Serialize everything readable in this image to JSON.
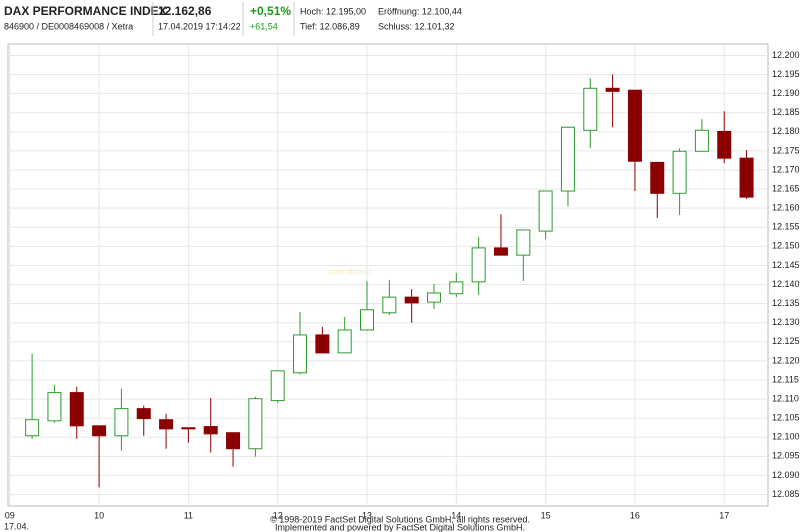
{
  "header": {
    "title": "DAX PERFORMANCE INDEX",
    "ids": "846900 / DE0008469008 / Xetra",
    "price": "12.162,86",
    "timestamp": "17.04.2019 17:14:22",
    "change_pct": "+0,51%",
    "change_abs": "+61,54",
    "high": "Hoch: 12.195,00",
    "open": "Eröffnung: 12.100,44",
    "low": "Tief: 12.086,89",
    "prev_close": "Schluss: 12.101,32"
  },
  "chart_data": {
    "type": "candlestick",
    "watermark": "comdirect",
    "date_label": "17.04.",
    "x": [
      9.25,
      9.5,
      9.75,
      10,
      10.25,
      10.5,
      10.75,
      11,
      11.25,
      11.5,
      11.75,
      12,
      12.25,
      12.5,
      12.75,
      13,
      13.25,
      13.5,
      13.75,
      14,
      14.25,
      14.5,
      14.75,
      15,
      15.25,
      15.5,
      15.75,
      16,
      16.25,
      16.5,
      16.75,
      17,
      17.25
    ],
    "open": [
      12100.4,
      12104.3,
      12111.7,
      12103.0,
      12100.4,
      12107.5,
      12104.6,
      12102.5,
      12102.8,
      12101.2,
      12097.0,
      12109.6,
      12116.9,
      12126.8,
      12122.1,
      12128.1,
      12132.6,
      12136.7,
      12135.4,
      12137.6,
      12140.7,
      12149.6,
      12147.7,
      12154.0,
      12164.5,
      12180.4,
      12191.4,
      12190.9,
      12172.0,
      12163.9,
      12174.9,
      12180.1,
      12173.1
    ],
    "high": [
      12121.9,
      12113.7,
      12113.2,
      12103.0,
      12112.7,
      12108.3,
      12106.2,
      12102.5,
      12110.3,
      12101.2,
      12110.6,
      12117.4,
      12132.8,
      12128.9,
      12131.5,
      12140.9,
      12141.2,
      12138.8,
      12140.1,
      12143.0,
      12152.4,
      12158.4,
      12154.3,
      12164.5,
      12181.4,
      12194.0,
      12195.0,
      12190.9,
      12172.0,
      12175.7,
      12183.3,
      12185.4,
      12175.2
    ],
    "low": [
      12099.6,
      12103.8,
      12099.6,
      12086.9,
      12096.5,
      12100.4,
      12097.0,
      12098.6,
      12096.0,
      12092.3,
      12094.9,
      12109.0,
      12116.4,
      12122.1,
      12122.1,
      12127.9,
      12132.0,
      12130.0,
      12133.6,
      12136.7,
      12137.3,
      12147.7,
      12140.9,
      12151.9,
      12160.5,
      12175.7,
      12181.2,
      12164.5,
      12157.4,
      12158.2,
      12174.9,
      12171.8,
      12162.4
    ],
    "close": [
      12104.6,
      12111.7,
      12103.0,
      12100.4,
      12107.5,
      12104.9,
      12102.2,
      12102.2,
      12100.9,
      12097.0,
      12110.1,
      12117.4,
      12126.8,
      12122.1,
      12128.1,
      12133.4,
      12136.7,
      12135.2,
      12137.8,
      12140.7,
      12149.6,
      12147.7,
      12154.3,
      12164.5,
      12181.2,
      12191.4,
      12190.6,
      12172.3,
      12163.9,
      12174.9,
      12180.4,
      12173.1,
      12162.9
    ],
    "up_color": "#2e9b2e",
    "down_color": "#8b0000",
    "xlim": [
      8.98,
      17.49
    ],
    "xticks": [
      {
        "value": 9,
        "label": "09"
      },
      10,
      11,
      12,
      13,
      14,
      15,
      16,
      17
    ],
    "ylim": [
      12082,
      12203
    ],
    "yticks": [
      {
        "value": 12085,
        "label": "12.085"
      },
      {
        "value": 12090,
        "label": "12.090"
      },
      {
        "value": 12095,
        "label": "12.095"
      },
      {
        "value": 12100,
        "label": "12.100"
      },
      {
        "value": 12105,
        "label": "12.105"
      },
      {
        "value": 12110,
        "label": "12.110"
      },
      {
        "value": 12115,
        "label": "12.115"
      },
      {
        "value": 12120,
        "label": "12.120"
      },
      {
        "value": 12125,
        "label": "12.125"
      },
      {
        "value": 12130,
        "label": "12.130"
      },
      {
        "value": 12135,
        "label": "12.135"
      },
      {
        "value": 12140,
        "label": "12.140"
      },
      {
        "value": 12145,
        "label": "12.145"
      },
      {
        "value": 12150,
        "label": "12.150"
      },
      {
        "value": 12155,
        "label": "12.155"
      },
      {
        "value": 12160,
        "label": "12.160"
      },
      {
        "value": 12165,
        "label": "12.165"
      },
      {
        "value": 12170,
        "label": "12.170"
      },
      {
        "value": 12175,
        "label": "12.175"
      },
      {
        "value": 12180,
        "label": "12.180"
      },
      {
        "value": 12185,
        "label": "12.185"
      },
      {
        "value": 12190,
        "label": "12.190"
      },
      {
        "value": 12195,
        "label": "12.195"
      },
      {
        "value": 12200,
        "label": "12.200"
      }
    ],
    "grid": true
  },
  "footer": {
    "line1": "© 1998-2019 FactSet Digital Solutions GmbH, all rights reserved.",
    "line2": "Implemented and powered by FactSet Digital Solutions GmbH."
  }
}
